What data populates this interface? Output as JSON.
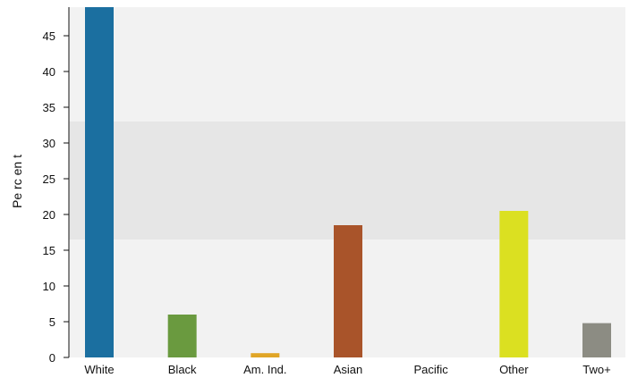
{
  "chart_data": {
    "type": "bar",
    "ylabel": "Pe rc en t",
    "categories": [
      "White",
      "Black",
      "Am. Ind.",
      "Asian",
      "Pacific",
      "Other",
      "Two+"
    ],
    "values": [
      50.0,
      6.0,
      0.6,
      18.5,
      0.0,
      20.5,
      4.8
    ],
    "colors": [
      "#1b6fa0",
      "#6a9a3f",
      "#e0a526",
      "#a9542a",
      "#cccccc",
      "#dbe021",
      "#8c8c83"
    ],
    "yticks": [
      0,
      5,
      10,
      15,
      20,
      25,
      30,
      35,
      40,
      45
    ],
    "ylim": [
      0,
      49
    ],
    "band": [
      16.5,
      33
    ],
    "band_color": "#e6e6e6",
    "plot_bg": "#f2f2f2",
    "grid": false
  }
}
